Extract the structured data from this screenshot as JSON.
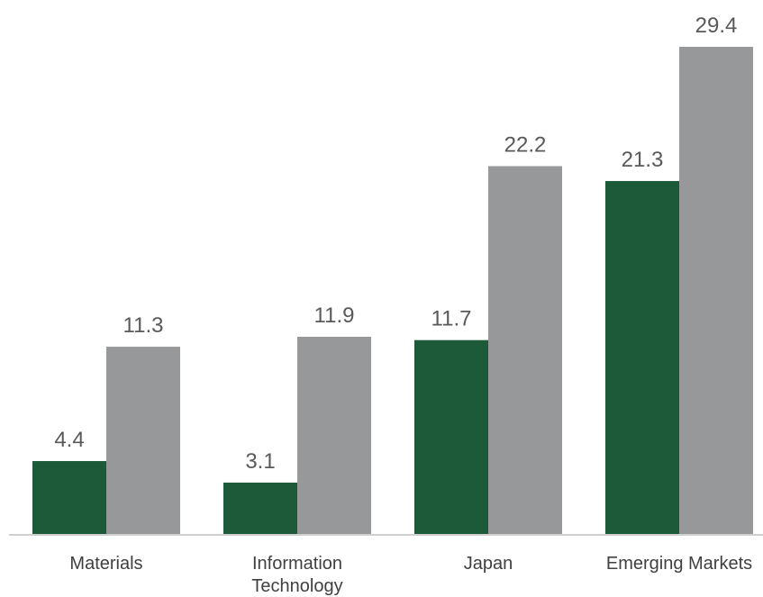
{
  "chart_data": {
    "type": "bar",
    "title": "",
    "xlabel": "",
    "ylabel": "",
    "categories": [
      "Materials",
      "Information Technology",
      "Japan",
      "Emerging Markets"
    ],
    "category_lines": [
      [
        "Materials"
      ],
      [
        "Information",
        "Technology"
      ],
      [
        "Japan"
      ],
      [
        "Emerging Markets"
      ]
    ],
    "series": [
      {
        "values": [
          4.4,
          3.1,
          11.7,
          21.3
        ],
        "color": "#1c5a3a"
      },
      {
        "values": [
          11.3,
          11.9,
          22.2,
          29.4
        ],
        "color": "#979899"
      }
    ],
    "value_labels": [
      [
        "4.4",
        "3.1",
        "11.7",
        "21.3"
      ],
      [
        "11.3",
        "11.9",
        "22.2",
        "29.4"
      ]
    ],
    "ylim": [
      0,
      29.4
    ],
    "grid": false,
    "legend": "none",
    "axis_color": "#bfbfbf"
  }
}
